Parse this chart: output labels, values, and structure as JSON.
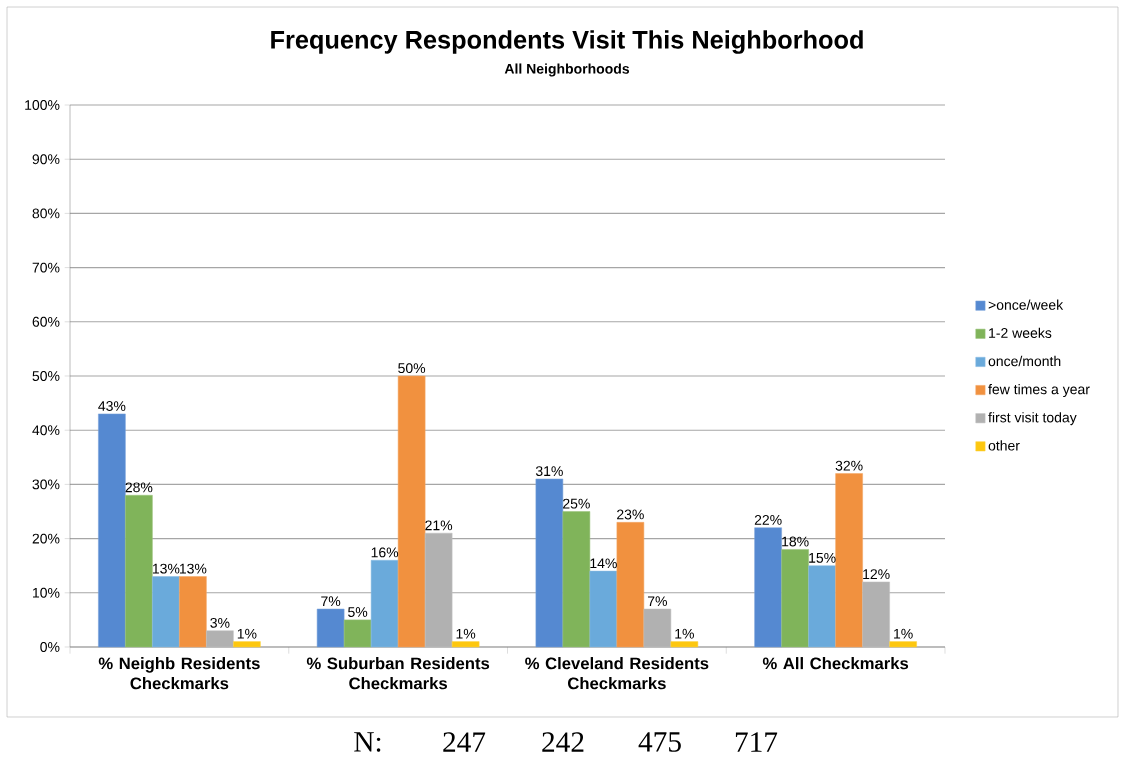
{
  "chart_data": {
    "type": "bar",
    "title": "Frequency Respondents Visit This Neighborhood",
    "subtitle": "All Neighborhoods",
    "categories": [
      "% Neighb Residents Checkmarks",
      "% Suburban Residents Checkmarks",
      "% Cleveland Residents Checkmarks",
      "% All Checkmarks"
    ],
    "series": [
      {
        "name": ">once/week",
        "color": "#5589d1",
        "values": [
          43,
          7,
          31,
          22
        ],
        "value_labels": [
          "43%",
          "7%",
          "31%",
          "22%"
        ]
      },
      {
        "name": "1-2 weeks",
        "color": "#80b45a",
        "values": [
          28,
          5,
          25,
          18
        ],
        "value_labels": [
          "28%",
          "5%",
          "25%",
          "18%"
        ]
      },
      {
        "name": "once/month",
        "color": "#6aaadb",
        "values": [
          13,
          16,
          14,
          15
        ],
        "value_labels": [
          "13%",
          "16%",
          "14%",
          "15%"
        ]
      },
      {
        "name": "few times a year",
        "color": "#f1913f",
        "values": [
          13,
          50,
          23,
          32
        ],
        "value_labels": [
          "13%",
          "50%",
          "23%",
          "32%"
        ]
      },
      {
        "name": "first visit today",
        "color": "#b1b1b1",
        "values": [
          3,
          21,
          7,
          12
        ],
        "value_labels": [
          "3%",
          "21%",
          "7%",
          "12%"
        ]
      },
      {
        "name": "other",
        "color": "#fdc70f",
        "values": [
          1,
          1,
          1,
          1
        ],
        "value_labels": [
          "1%",
          "1%",
          "1%",
          "1%"
        ]
      }
    ],
    "ylim": [
      0,
      100
    ],
    "yticks": [
      {
        "value": 0,
        "label": "0%"
      },
      {
        "value": 10,
        "label": "10%"
      },
      {
        "value": 20,
        "label": "20%"
      },
      {
        "value": 30,
        "label": "30%"
      },
      {
        "value": 40,
        "label": "40%"
      },
      {
        "value": 50,
        "label": "50%"
      },
      {
        "value": 60,
        "label": "60%"
      },
      {
        "value": 70,
        "label": "70%"
      },
      {
        "value": 80,
        "label": "80%"
      },
      {
        "value": 90,
        "label": "90%"
      },
      {
        "value": 100,
        "label": "100%"
      }
    ],
    "grid": "y",
    "legend": "right",
    "annotations": [
      "N:",
      "247",
      "242",
      "475",
      "717"
    ]
  }
}
